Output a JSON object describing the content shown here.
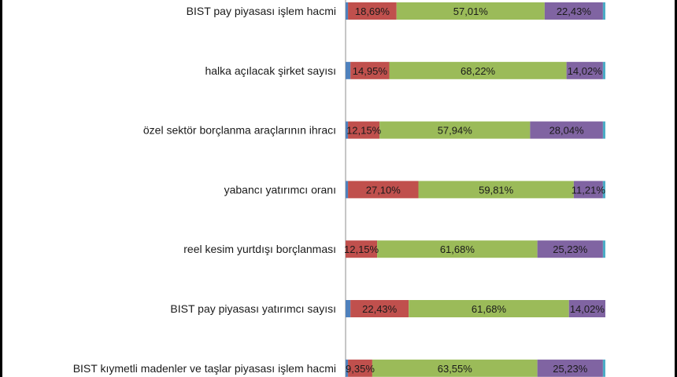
{
  "chart_data": {
    "type": "bar",
    "stacked": true,
    "orientation": "horizontal",
    "xlim": [
      0,
      100
    ],
    "categories": [
      "BIST pay piyasası işlem hacmi",
      "halka açılacak şirket sayısı",
      "özel sektör borçlanma araçlarının ihracı",
      "yabancı yatırımcı oranı",
      "reel kesim yurtdışı borçlanması",
      "BIST pay piyasası yatırımcı sayısı",
      "BIST kıymetli madenler ve taşlar piyasası işlem hacmi"
    ],
    "series": [
      {
        "color": "#4f81bd",
        "values": [
          0.93,
          1.87,
          0.93,
          0.93,
          0.0,
          1.87,
          0.93
        ],
        "labels": [
          "",
          "",
          "",
          "",
          "",
          "",
          ""
        ]
      },
      {
        "color": "#c0504d",
        "values": [
          18.69,
          14.95,
          12.15,
          27.1,
          12.15,
          22.43,
          9.35
        ],
        "labels": [
          "18,69%",
          "14,95%",
          "12,15%",
          "27,10%",
          "12,15%",
          "22,43%",
          "9,35%"
        ]
      },
      {
        "color": "#9bbb59",
        "values": [
          57.01,
          68.22,
          57.94,
          59.81,
          61.68,
          61.68,
          63.55
        ],
        "labels": [
          "57,01%",
          "68,22%",
          "57,94%",
          "59,81%",
          "61,68%",
          "61,68%",
          "63,55%"
        ]
      },
      {
        "color": "#8064a2",
        "values": [
          22.43,
          14.02,
          28.04,
          11.21,
          25.23,
          14.02,
          25.23
        ],
        "labels": [
          "22,43%",
          "14,02%",
          "28,04%",
          "11,21%",
          "25,23%",
          "14,02%",
          "25,23%"
        ]
      },
      {
        "color": "#4bacc6",
        "values": [
          0.94,
          0.94,
          0.94,
          0.95,
          0.94,
          0.0,
          0.94
        ],
        "labels": [
          "",
          "",
          "",
          "",
          "",
          "",
          ""
        ]
      }
    ]
  }
}
